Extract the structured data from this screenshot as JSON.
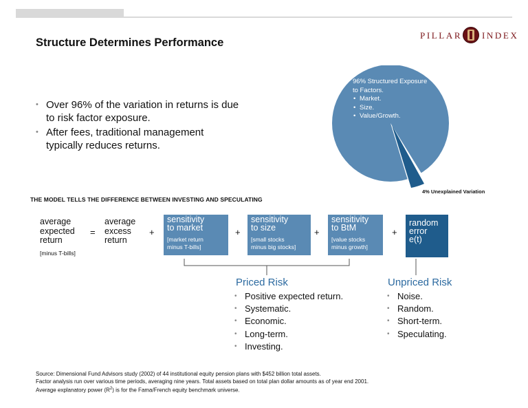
{
  "header": {
    "title": "Structure Determines Performance",
    "logo_left": "PILLAR",
    "logo_right": "INDEX"
  },
  "bullets": [
    "Over 96% of the variation in returns is due to risk factor exposure.",
    "After fees, traditional management typically reduces returns."
  ],
  "pie": {
    "label_main": "96% Structured Exposure to Factors.",
    "label_items": [
      "Market.",
      "Size.",
      "Value/Growth."
    ],
    "unexplained_label": "4% Unexplained Variation",
    "structured_percent": 96,
    "unexplained_percent": 4,
    "colors": {
      "structured": "#5a8ab4",
      "unexplained": "#1f5c8c"
    }
  },
  "model": {
    "heading": "THE MODEL TELLS THE DIFFERENCE BETWEEN INVESTING AND SPECULATING",
    "lhs_line1": "average",
    "lhs_line2": "expected",
    "lhs_line3": "return",
    "lhs_note": "[minus T-bills]",
    "equals": "=",
    "excess_line1": "average",
    "excess_line2": "excess",
    "excess_line3": "return",
    "plus": "+",
    "boxes": [
      {
        "line1": "sensitivity",
        "line2": "to market",
        "note1": "[market return",
        "note2": "minus T-bills]"
      },
      {
        "line1": "sensitivity",
        "line2": "to size",
        "note1": "[small stocks",
        "note2": "minus big stocks]"
      },
      {
        "line1": "sensitivity",
        "line2": "to BtM",
        "note1": "[value stocks",
        "note2": "minus growth]"
      }
    ],
    "error_box": {
      "line1": "random",
      "line2": "error",
      "line3": "e(t)"
    }
  },
  "priced_risk": {
    "title": "Priced Risk",
    "items": [
      "Positive expected return.",
      "Systematic.",
      "Economic.",
      "Long-term.",
      "Investing."
    ]
  },
  "unpriced_risk": {
    "title": "Unpriced Risk",
    "items": [
      "Noise.",
      "Random.",
      "Short-term.",
      "Speculating."
    ]
  },
  "footnote": {
    "line1": "Source: Dimensional Fund Advisors study (2002) of 44 institutional equity pension plans with $452 billion total assets.",
    "line2": "Factor analysis run over various time periods, averaging nine years. Total assets based on total plan dollar amounts as of year end 2001.",
    "line3_pre": "Average explanatory power (R",
    "line3_sup": "2",
    "line3_post": ") is for the Fama/French equity benchmark universe."
  }
}
